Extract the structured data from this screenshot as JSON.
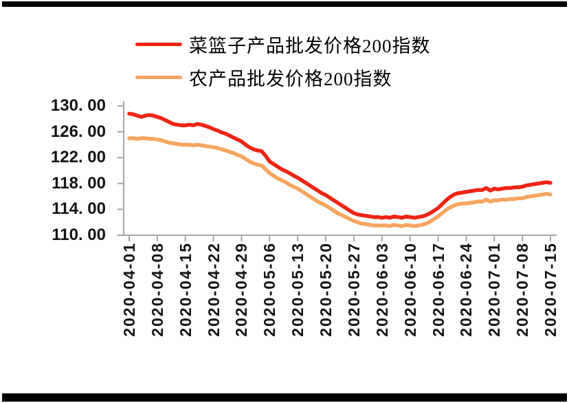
{
  "page": {
    "background": "#ffffff",
    "border_color": "#000000"
  },
  "legend": {
    "items": [
      {
        "label": "菜篮子产品批发价格200指数",
        "color": "#ee2413"
      },
      {
        "label": "农产品批发价格200指数",
        "color": "#f6a45f"
      }
    ]
  },
  "chart_data": {
    "type": "line",
    "title": "",
    "xlabel": "",
    "ylabel": "",
    "grid": false,
    "legend_position": "top",
    "axis_color": "#a6a6a6",
    "ylim": [
      110,
      130
    ],
    "y_tick_labels": [
      "130. 00",
      "126. 00",
      "122. 00",
      "118. 00",
      "114. 00",
      "110. 00"
    ],
    "y_tick_values": [
      130,
      126,
      122,
      118,
      114,
      110
    ],
    "categories": [
      "2020-04-01",
      "2020-04-08",
      "2020-04-15",
      "2020-04-22",
      "2020-04-29",
      "2020-05-06",
      "2020-05-13",
      "2020-05-20",
      "2020-05-27",
      "2020-06-03",
      "2020-06-10",
      "2020-06-17",
      "2020-06-24",
      "2020-07-01",
      "2020-07-08",
      "2020-07-15"
    ],
    "x_range": [
      "2020-04-01",
      "2020-07-15"
    ],
    "frequency": "daily",
    "series": [
      {
        "name": "菜篮子产品批发价格200指数",
        "color": "#ee2413",
        "values": [
          128.8,
          128.7,
          128.5,
          128.3,
          128.5,
          128.6,
          128.5,
          128.3,
          128.1,
          127.8,
          127.5,
          127.2,
          127.1,
          127.0,
          127.0,
          127.1,
          127.0,
          127.2,
          127.1,
          126.9,
          126.7,
          126.4,
          126.2,
          125.9,
          125.7,
          125.4,
          125.1,
          124.8,
          124.5,
          124.0,
          123.6,
          123.3,
          123.1,
          123.0,
          122.3,
          121.4,
          121.0,
          120.6,
          120.2,
          119.9,
          119.6,
          119.2,
          118.9,
          118.5,
          118.1,
          117.7,
          117.3,
          116.9,
          116.5,
          116.2,
          115.8,
          115.4,
          115.0,
          114.6,
          114.2,
          113.8,
          113.4,
          113.2,
          113.1,
          113.0,
          112.9,
          112.8,
          112.8,
          112.7,
          112.8,
          112.7,
          112.9,
          112.8,
          112.7,
          112.9,
          112.8,
          112.7,
          112.8,
          112.9,
          113.1,
          113.4,
          113.8,
          114.2,
          114.8,
          115.4,
          115.9,
          116.3,
          116.5,
          116.6,
          116.7,
          116.8,
          116.9,
          117.0,
          117.0,
          117.3,
          116.9,
          117.2,
          117.1,
          117.2,
          117.3,
          117.3,
          117.4,
          117.4,
          117.5,
          117.7,
          117.8,
          117.9,
          118.0,
          118.1,
          118.2,
          118.1
        ]
      },
      {
        "name": "农产品批发价格200指数",
        "color": "#f6a45f",
        "values": [
          125.0,
          125.0,
          124.9,
          125.0,
          125.0,
          124.9,
          124.9,
          124.8,
          124.7,
          124.5,
          124.3,
          124.2,
          124.1,
          124.0,
          124.0,
          124.0,
          123.9,
          124.0,
          123.9,
          123.8,
          123.7,
          123.6,
          123.5,
          123.3,
          123.1,
          122.9,
          122.7,
          122.4,
          122.2,
          121.8,
          121.4,
          121.1,
          120.9,
          120.8,
          120.2,
          119.6,
          119.2,
          118.8,
          118.5,
          118.2,
          117.8,
          117.5,
          117.2,
          116.8,
          116.4,
          116.0,
          115.6,
          115.2,
          114.9,
          114.6,
          114.2,
          113.8,
          113.4,
          113.1,
          112.8,
          112.5,
          112.2,
          112.0,
          111.8,
          111.7,
          111.6,
          111.5,
          111.5,
          111.5,
          111.5,
          111.4,
          111.6,
          111.5,
          111.4,
          111.6,
          111.5,
          111.4,
          111.5,
          111.6,
          111.8,
          112.1,
          112.5,
          112.9,
          113.4,
          113.9,
          114.3,
          114.6,
          114.8,
          114.9,
          114.9,
          115.0,
          115.1,
          115.2,
          115.2,
          115.5,
          115.2,
          115.4,
          115.4,
          115.5,
          115.5,
          115.6,
          115.6,
          115.7,
          115.7,
          115.9,
          116.0,
          116.1,
          116.2,
          116.3,
          116.4,
          116.3
        ]
      }
    ]
  }
}
